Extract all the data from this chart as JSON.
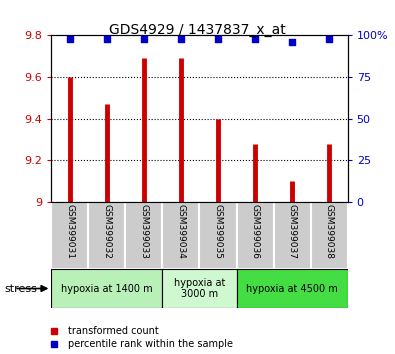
{
  "title": "GDS4929 / 1437837_x_at",
  "samples": [
    "GSM399031",
    "GSM399032",
    "GSM399033",
    "GSM399034",
    "GSM399035",
    "GSM399036",
    "GSM399037",
    "GSM399038"
  ],
  "red_values": [
    9.6,
    9.47,
    9.69,
    9.69,
    9.4,
    9.28,
    9.1,
    9.28
  ],
  "blue_values": [
    98,
    98,
    98,
    98,
    98,
    98,
    96,
    98
  ],
  "ylim_left": [
    9.0,
    9.8
  ],
  "ylim_right": [
    0,
    100
  ],
  "yticks_left": [
    9.0,
    9.2,
    9.4,
    9.6,
    9.8
  ],
  "yticks_right": [
    0,
    25,
    50,
    75,
    100
  ],
  "groups": [
    {
      "label": "hypoxia at 1400 m",
      "start": 0,
      "end": 3,
      "color": "#b8f0b8"
    },
    {
      "label": "hypoxia at\n3000 m",
      "start": 3,
      "end": 5,
      "color": "#d0f8d0"
    },
    {
      "label": "hypoxia at 4500 m",
      "start": 5,
      "end": 8,
      "color": "#44dd44"
    }
  ],
  "stress_label": "stress",
  "bar_color": "#cc0000",
  "dot_color": "#0000cc",
  "grid_color": "#000000",
  "label_color_left": "#cc0000",
  "label_color_right": "#0000cc",
  "legend_red": "transformed count",
  "legend_blue": "percentile rank within the sample",
  "base_value": 9.0,
  "sample_bg": "#cccccc",
  "fig_bg": "#ffffff"
}
